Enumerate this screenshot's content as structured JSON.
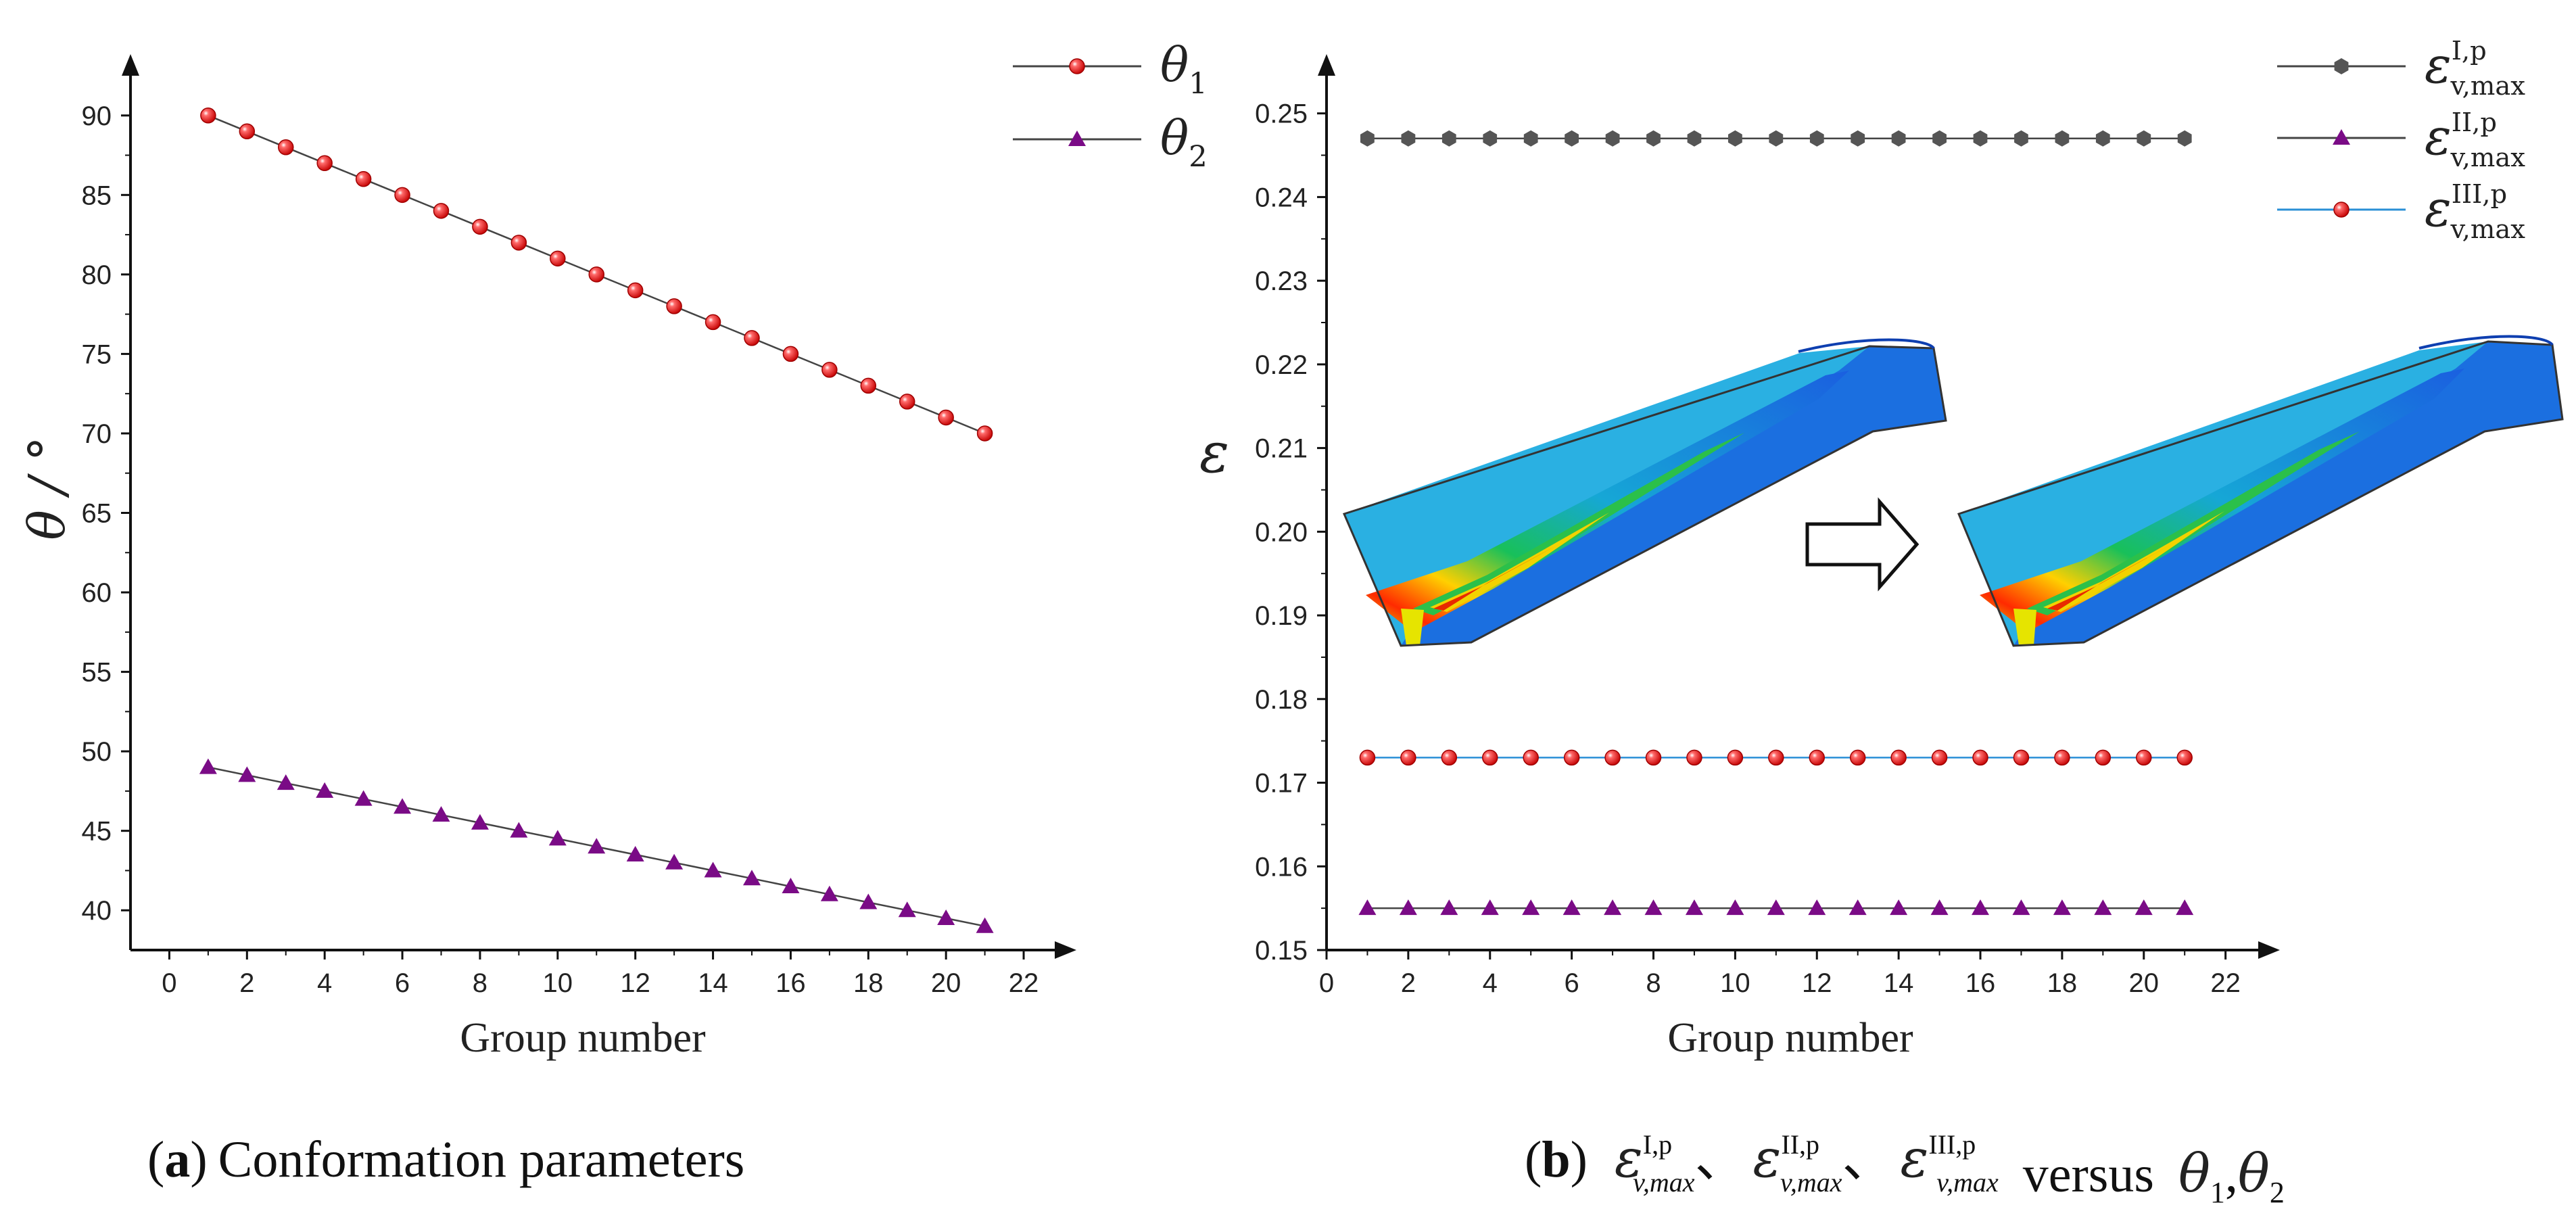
{
  "chart_data": [
    {
      "id": "a",
      "type": "line",
      "xlabel": "Group number",
      "ylabel": "θ / °",
      "xlim": [
        -1,
        22.8
      ],
      "ylim": [
        37.5,
        92.5
      ],
      "xticks": [
        0,
        2,
        4,
        6,
        8,
        10,
        12,
        14,
        16,
        18,
        20,
        22
      ],
      "yticks": [
        40,
        45,
        50,
        55,
        60,
        65,
        70,
        75,
        80,
        85,
        90
      ],
      "series": [
        {
          "name": "θ1",
          "symbol": "θ",
          "sub": "1",
          "marker": "circle",
          "color": "#e8141a",
          "line_color": "#444444",
          "x": [
            1,
            2,
            3,
            4,
            5,
            6,
            7,
            8,
            9,
            10,
            11,
            12,
            13,
            14,
            15,
            16,
            17,
            18,
            19,
            20,
            21
          ],
          "values": [
            90,
            89,
            88,
            87,
            86,
            85,
            84,
            83,
            82,
            81,
            80,
            79,
            78,
            77,
            76,
            75,
            74,
            73,
            72,
            71,
            70
          ]
        },
        {
          "name": "θ2",
          "symbol": "θ",
          "sub": "2",
          "marker": "triangle",
          "color": "#7a0b86",
          "line_color": "#444444",
          "x": [
            1,
            2,
            3,
            4,
            5,
            6,
            7,
            8,
            9,
            10,
            11,
            12,
            13,
            14,
            15,
            16,
            17,
            18,
            19,
            20,
            21
          ],
          "values": [
            49,
            48.5,
            48,
            47.5,
            47,
            46.5,
            46,
            45.5,
            45,
            44.5,
            44,
            43.5,
            43,
            42.5,
            42,
            41.5,
            41,
            40.5,
            40,
            39.5,
            39
          ]
        }
      ],
      "legend": "top-right",
      "caption": {
        "letter": "a",
        "text": "Conformation parameters"
      }
    },
    {
      "id": "b",
      "type": "line",
      "xlabel": "Group number",
      "ylabel": "ε",
      "xlim": [
        0,
        22.8
      ],
      "ylim": [
        0.15,
        0.2545
      ],
      "xticks": [
        0,
        2,
        4,
        6,
        8,
        10,
        12,
        14,
        16,
        18,
        20,
        22
      ],
      "yticks": [
        0.15,
        0.16,
        0.17,
        0.18,
        0.19,
        0.2,
        0.21,
        0.22,
        0.23,
        0.24,
        0.25
      ],
      "ytick_labels": [
        "0.15",
        "0.16",
        "0.17",
        "0.18",
        "0.19",
        "0.20",
        "0.21",
        "0.22",
        "0.23",
        "0.24",
        "0.25"
      ],
      "series": [
        {
          "name": "ε v,max I,p",
          "symbol": "ε",
          "sub": "v,max",
          "sup": "I,p",
          "marker": "hexagon",
          "color": "#555555",
          "line_color": "#444444",
          "x": [
            1,
            2,
            3,
            4,
            5,
            6,
            7,
            8,
            9,
            10,
            11,
            12,
            13,
            14,
            15,
            16,
            17,
            18,
            19,
            20,
            21
          ],
          "values": [
            0.247,
            0.247,
            0.247,
            0.247,
            0.247,
            0.247,
            0.247,
            0.247,
            0.247,
            0.247,
            0.247,
            0.247,
            0.247,
            0.247,
            0.247,
            0.247,
            0.247,
            0.247,
            0.247,
            0.247,
            0.247
          ]
        },
        {
          "name": "ε v,max II,p",
          "symbol": "ε",
          "sub": "v,max",
          "sup": "II,p",
          "marker": "triangle",
          "color": "#7a0b86",
          "line_color": "#444444",
          "x": [
            1,
            2,
            3,
            4,
            5,
            6,
            7,
            8,
            9,
            10,
            11,
            12,
            13,
            14,
            15,
            16,
            17,
            18,
            19,
            20,
            21
          ],
          "values": [
            0.155,
            0.155,
            0.155,
            0.155,
            0.155,
            0.155,
            0.155,
            0.155,
            0.155,
            0.155,
            0.155,
            0.155,
            0.155,
            0.155,
            0.155,
            0.155,
            0.155,
            0.155,
            0.155,
            0.155,
            0.155
          ]
        },
        {
          "name": "ε v,max III,p",
          "symbol": "ε",
          "sub": "v,max",
          "sup": "III,p",
          "marker": "circle",
          "color": "#e8141a",
          "line_color": "#2a8fd6",
          "x": [
            1,
            2,
            3,
            4,
            5,
            6,
            7,
            8,
            9,
            10,
            11,
            12,
            13,
            14,
            15,
            16,
            17,
            18,
            19,
            20,
            21
          ],
          "values": [
            0.173,
            0.173,
            0.173,
            0.173,
            0.173,
            0.173,
            0.173,
            0.173,
            0.173,
            0.173,
            0.173,
            0.173,
            0.173,
            0.173,
            0.173,
            0.173,
            0.173,
            0.173,
            0.173,
            0.173,
            0.173
          ]
        }
      ],
      "legend": "top-right",
      "inset": "two strain contour plots of the notched specimen with an arrow between them",
      "caption": {
        "letter": "b",
        "terms": [
          {
            "symbol": "ε",
            "sup": "I,p",
            "sub": "v,max",
            "sep": "、"
          },
          {
            "symbol": "ε",
            "sup": "II,p",
            "sub": "v,max",
            "sep": "、"
          },
          {
            "symbol": "ε",
            "sup": "III,p",
            "sub": "v,max",
            "sep": ""
          }
        ],
        "versus": "versus",
        "theta1": {
          "symbol": "θ",
          "sub": "1"
        },
        "comma": ",",
        "theta2": {
          "symbol": "θ",
          "sub": "2"
        }
      }
    }
  ]
}
